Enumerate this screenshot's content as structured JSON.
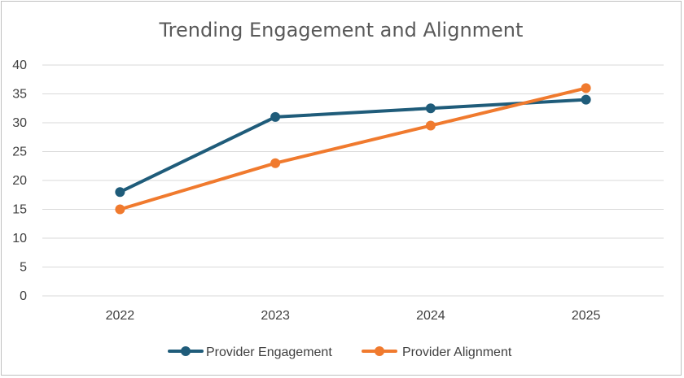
{
  "chart_data": {
    "type": "line",
    "title": "Trending Engagement and Alignment",
    "xlabel": "",
    "ylabel": "",
    "categories": [
      "2022",
      "2023",
      "2024",
      "2025"
    ],
    "ylim": [
      0,
      40
    ],
    "yticks": [
      0,
      5,
      10,
      15,
      20,
      25,
      30,
      35,
      40
    ],
    "grid": true,
    "legend_position": "bottom",
    "series": [
      {
        "name": "Provider Engagement",
        "color": "#1f5c7a",
        "values": [
          18,
          31,
          32.5,
          34
        ]
      },
      {
        "name": "Provider Alignment",
        "color": "#f07a2e",
        "values": [
          15,
          23,
          29.5,
          36
        ]
      }
    ]
  }
}
